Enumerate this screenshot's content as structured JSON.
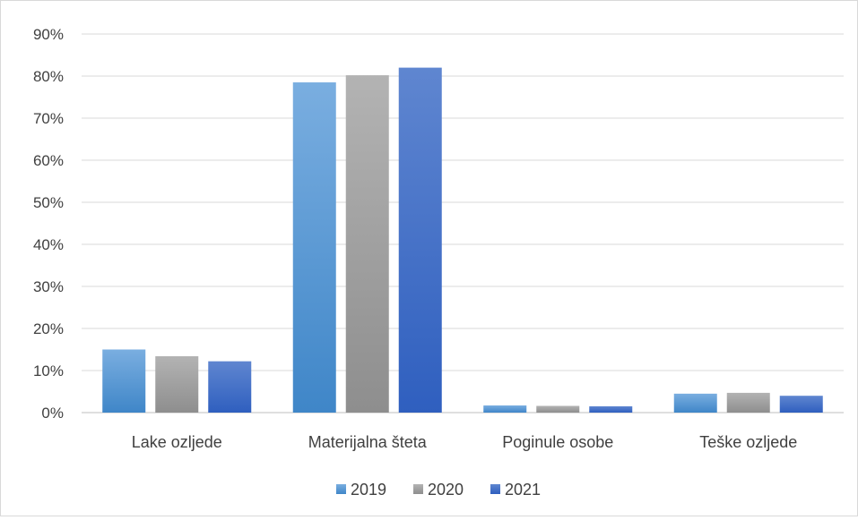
{
  "chart_data": {
    "type": "bar",
    "title": "",
    "xlabel": "",
    "ylabel": "",
    "categories": [
      "Lake ozljede",
      "Materijalna šteta",
      "Poginule osobe",
      "Teške ozljede"
    ],
    "series": [
      {
        "name": "2019",
        "values": [
          15.0,
          78.5,
          1.7,
          4.5
        ],
        "color": "#5b9bd5"
      },
      {
        "name": "2020",
        "values": [
          13.4,
          80.2,
          1.6,
          4.7
        ],
        "color": "#a5a5a5"
      },
      {
        "name": "2021",
        "values": [
          12.2,
          82.0,
          1.5,
          4.0
        ],
        "color": "#4472c4"
      }
    ],
    "ylim": [
      0,
      90
    ],
    "yticks": [
      0,
      10,
      20,
      30,
      40,
      50,
      60,
      70,
      80,
      90
    ],
    "ytick_labels": [
      "0%",
      "10%",
      "20%",
      "30%",
      "40%",
      "50%",
      "60%",
      "70%",
      "80%",
      "90%"
    ],
    "grid": true,
    "legend_position": "bottom"
  }
}
